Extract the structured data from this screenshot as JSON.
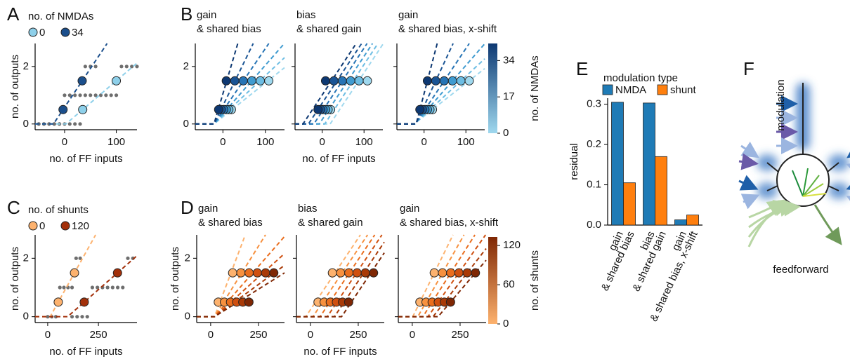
{
  "chart_data": [
    {
      "panel": "A",
      "type": "line",
      "legend_title": "no. of NMDAs",
      "xlabel": "no. of FF inputs",
      "ylabel": "no. of outputs",
      "xlim": [
        -57,
        140
      ],
      "ylim": [
        -0.2,
        2.8
      ],
      "xticks": [
        0,
        100
      ],
      "yticks": [
        0,
        2
      ],
      "sample_color": "#6e6e6e",
      "series": [
        {
          "name": "0",
          "color": "#8ed0ea",
          "points_x": [
            35,
            100
          ],
          "points_y": [
            0.5,
            1.5
          ],
          "x0": 2.5,
          "slope": 0.0154,
          "samples_x": [
            -50,
            -40,
            -30,
            -20,
            -10,
            0,
            10,
            20,
            30,
            40,
            50,
            60,
            70,
            80,
            90,
            100,
            110,
            120,
            130,
            140
          ],
          "samples_y": [
            0,
            0,
            0,
            0,
            0,
            0,
            0,
            0,
            0,
            1,
            1,
            1,
            1,
            1,
            1,
            1,
            2,
            2,
            2,
            2
          ]
        },
        {
          "name": "34",
          "color": "#1b4f8c",
          "points_x": [
            -3,
            34
          ],
          "points_y": [
            0.5,
            1.5
          ],
          "x0": -21.5,
          "slope": 0.027,
          "samples_x": [
            -50,
            -40,
            -30,
            -20,
            -10,
            0,
            10,
            20,
            30,
            40,
            50,
            60
          ],
          "samples_y": [
            0,
            0,
            0,
            0,
            0,
            1,
            1,
            1,
            1,
            2,
            2,
            2
          ]
        }
      ]
    },
    {
      "panel": "B",
      "type": "lines",
      "xlabel": "no. of FF inputs",
      "xlim": [
        -65,
        145
      ],
      "ylim": [
        -0.2,
        2.8
      ],
      "xticks": [
        0,
        100
      ],
      "yticks": [
        0,
        2
      ],
      "point_levels": [
        0.5,
        1.5
      ],
      "curves": [
        {
          "color": "#9fd8ee",
          "points_x": [
            20,
            108
          ]
        },
        {
          "color": "#6cbde3",
          "points_x": [
            14,
            88
          ]
        },
        {
          "color": "#3f9bd0",
          "points_x": [
            8,
            68
          ]
        },
        {
          "color": "#2674b5",
          "points_x": [
            2,
            48
          ]
        },
        {
          "color": "#1a5494",
          "points_x": [
            -4,
            28
          ]
        },
        {
          "color": "#0d3872",
          "points_x": [
            -10,
            8
          ]
        }
      ],
      "subplots": [
        {
          "title": [
            "gain",
            "& shared bias"
          ],
          "fits": [
            {
              "x0": -21,
              "slope": 0.0118
            },
            {
              "x0": -21,
              "slope": 0.0139
            },
            {
              "x0": -21,
              "slope": 0.0169
            },
            {
              "x0": -21,
              "slope": 0.0217
            },
            {
              "x0": -21,
              "slope": 0.0303
            },
            {
              "x0": -21,
              "slope": 0.05
            }
          ]
        },
        {
          "title": [
            "bias",
            "& shared gain"
          ],
          "fits": [
            {
              "x0": 19,
              "slope": 0.022
            },
            {
              "x0": 6,
              "slope": 0.022
            },
            {
              "x0": -7,
              "slope": 0.022
            },
            {
              "x0": -20,
              "slope": 0.022
            },
            {
              "x0": -33,
              "slope": 0.022
            },
            {
              "x0": -46,
              "slope": 0.022
            }
          ]
        },
        {
          "title": [
            "gain",
            "& shared bias, x-shift"
          ],
          "fits": [
            {
              "x0": -24,
              "slope": 0.0114
            },
            {
              "x0": -23,
              "slope": 0.0135
            },
            {
              "x0": -22,
              "slope": 0.0167
            },
            {
              "x0": -21,
              "slope": 0.0217
            },
            {
              "x0": -20,
              "slope": 0.0313
            },
            {
              "x0": -19,
              "slope": 0.0556
            }
          ]
        }
      ],
      "colorbar": {
        "label": "no. of NMDAs",
        "lim": [
          0,
          42
        ],
        "ticks": [
          0,
          17,
          34
        ],
        "colors": [
          "#9fd8ee",
          "#0d3872"
        ]
      }
    },
    {
      "panel": "C",
      "type": "line",
      "legend_title": "no. of shunts",
      "xlabel": "no. of FF inputs",
      "ylabel": "no. of outputs",
      "xlim": [
        -62,
        440
      ],
      "ylim": [
        -0.2,
        2.8
      ],
      "xticks": [
        0,
        250
      ],
      "yticks": [
        0,
        2
      ],
      "sample_color": "#6e6e6e",
      "series": [
        {
          "name": "0",
          "color": "#fdb26e",
          "points_x": [
            52,
            132
          ],
          "points_y": [
            0.5,
            1.5
          ],
          "x0": 12,
          "slope": 0.0125,
          "samples_x": [
            0,
            20,
            40,
            60,
            80,
            100,
            120,
            140,
            160
          ],
          "samples_y": [
            0,
            0,
            0,
            1,
            1,
            1,
            1,
            2,
            2
          ]
        },
        {
          "name": "120",
          "color": "#a3300a",
          "points_x": [
            180,
            344
          ],
          "points_y": [
            0.5,
            1.5
          ],
          "x0": 98,
          "slope": 0.0061,
          "samples_x": [
            120,
            145,
            170,
            195,
            220,
            245,
            270,
            295,
            320,
            345,
            370,
            395,
            420
          ],
          "samples_y": [
            0,
            0,
            0,
            0,
            1,
            1,
            1,
            1,
            1,
            1,
            1,
            2,
            2
          ]
        }
      ]
    },
    {
      "panel": "D",
      "type": "lines",
      "xlabel": "no. of FF inputs",
      "ylabel": "no. of outputs",
      "xlim": [
        -73,
        386
      ],
      "ylim": [
        -0.2,
        2.8
      ],
      "xticks": [
        0,
        250
      ],
      "yticks": [
        0,
        2
      ],
      "point_levels": [
        0.5,
        1.5
      ],
      "curves": [
        {
          "color": "#fdb26e",
          "points_x": [
            40,
            115
          ]
        },
        {
          "color": "#f7913f",
          "points_x": [
            72,
            158
          ]
        },
        {
          "color": "#ea6e1e",
          "points_x": [
            104,
            201
          ]
        },
        {
          "color": "#cf5010",
          "points_x": [
            136,
            244
          ]
        },
        {
          "color": "#a93a07",
          "points_x": [
            168,
            287
          ]
        },
        {
          "color": "#7f2704",
          "points_x": [
            200,
            330
          ]
        }
      ],
      "subplots": [
        {
          "title": [
            "gain",
            "& shared bias"
          ],
          "fits": [
            {
              "x0": 20,
              "slope": 0.0174
            },
            {
              "x0": 20,
              "slope": 0.0105
            },
            {
              "x0": 20,
              "slope": 0.0075
            },
            {
              "x0": 20,
              "slope": 0.0059
            },
            {
              "x0": 20,
              "slope": 0.0048
            },
            {
              "x0": 20,
              "slope": 0.0041
            }
          ]
        },
        {
          "title": [
            "bias",
            "& shared gain"
          ],
          "fits": [
            {
              "x0": -24.5,
              "slope": 0.0098
            },
            {
              "x0": 13,
              "slope": 0.0098
            },
            {
              "x0": 50.5,
              "slope": 0.0098
            },
            {
              "x0": 88,
              "slope": 0.0098
            },
            {
              "x0": 125.5,
              "slope": 0.0098
            },
            {
              "x0": 163,
              "slope": 0.0098
            }
          ]
        },
        {
          "title": [
            "gain",
            "& shared bias, x-shift"
          ],
          "fits": [
            {
              "x0": 2.5,
              "slope": 0.0133
            },
            {
              "x0": 29,
              "slope": 0.0116
            },
            {
              "x0": 55.5,
              "slope": 0.0103
            },
            {
              "x0": 82,
              "slope": 0.0093
            },
            {
              "x0": 108.5,
              "slope": 0.0084
            },
            {
              "x0": 135,
              "slope": 0.0077
            }
          ]
        }
      ],
      "colorbar": {
        "label": "no. of shunts",
        "lim": [
          0,
          133
        ],
        "ticks": [
          0,
          60,
          120
        ],
        "colors": [
          "#fdb26e",
          "#7f2704"
        ]
      }
    },
    {
      "panel": "E",
      "type": "bar",
      "legend_title": "modulation type",
      "ylabel": "residual",
      "categories": [
        [
          "gain",
          "& shared bias"
        ],
        [
          "bias",
          "& shared gain"
        ],
        [
          "gain",
          "& shared bias, x-shift"
        ]
      ],
      "series": [
        {
          "name": "NMDA",
          "color": "#1f7bb6",
          "values": [
            0.305,
            0.303,
            0.013
          ]
        },
        {
          "name": "shunt",
          "color": "#ff7f0e",
          "values": [
            0.105,
            0.17,
            0.025
          ]
        }
      ],
      "ylim": [
        0,
        0.315
      ],
      "yticks": [
        {
          "value": 0,
          "label": "0.0"
        },
        0.1,
        0.2,
        0.3
      ]
    }
  ],
  "diagram": {
    "panel": "F",
    "labels": [
      "modulation",
      "feedforward"
    ]
  }
}
